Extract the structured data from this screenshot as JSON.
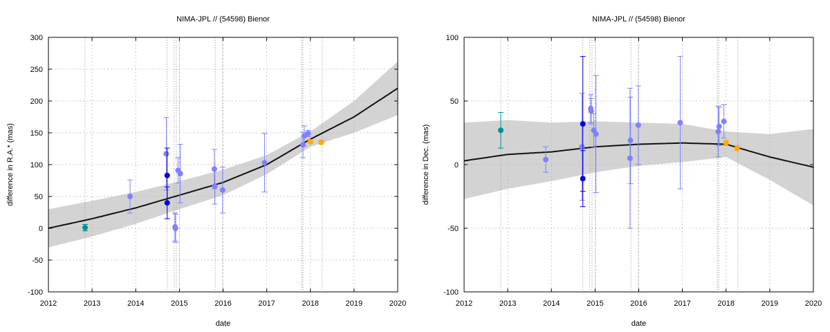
{
  "chart_data": [
    {
      "type": "scatter",
      "title": "NIMA-JPL // (54598) Bienor",
      "xlabel": "date",
      "ylabel": "difference in R.A.* (mas)",
      "xlim": [
        2012,
        2020
      ],
      "ylim": [
        -100,
        300
      ],
      "x_ticks": [
        "2012",
        "2013",
        "2014",
        "2015",
        "2016",
        "2017",
        "2018",
        "2019",
        "2020"
      ],
      "y_ticks": [
        "-100",
        "-50",
        "0",
        "50",
        "100",
        "150",
        "200",
        "250",
        "300"
      ],
      "grid": true,
      "epoch_lines": [
        2012.84,
        2014.72,
        2014.88,
        2014.93,
        2015.0,
        2015.82,
        2015.99,
        2017.8,
        2017.83,
        2018.27
      ],
      "model_band": [
        {
          "x": 2012.0,
          "y": 0,
          "sigma": 30
        },
        {
          "x": 2013.0,
          "y": 15,
          "sigma": 28
        },
        {
          "x": 2014.0,
          "y": 32,
          "sigma": 25
        },
        {
          "x": 2015.0,
          "y": 52,
          "sigma": 22
        },
        {
          "x": 2016.0,
          "y": 72,
          "sigma": 20
        },
        {
          "x": 2017.0,
          "y": 100,
          "sigma": 15
        },
        {
          "x": 2018.0,
          "y": 140,
          "sigma": 12
        },
        {
          "x": 2019.0,
          "y": 175,
          "sigma": 25
        },
        {
          "x": 2020.0,
          "y": 220,
          "sigma": 42
        }
      ],
      "series": [
        {
          "color": "#8080ff",
          "points": [
            {
              "x": 2013.87,
              "y": 50,
              "err": 26
            },
            {
              "x": 2014.7,
              "y": 117,
              "err": 57
            },
            {
              "x": 2014.9,
              "y": 2,
              "err": 22
            },
            {
              "x": 2014.91,
              "y": 0,
              "err": 22
            },
            {
              "x": 2014.97,
              "y": 91,
              "err": 20
            },
            {
              "x": 2015.02,
              "y": 86,
              "err": 46
            },
            {
              "x": 2015.8,
              "y": 93,
              "err": 31
            },
            {
              "x": 2015.81,
              "y": 66,
              "err": 28
            },
            {
              "x": 2015.99,
              "y": 60,
              "err": 36
            },
            {
              "x": 2016.95,
              "y": 103,
              "err": 46
            },
            {
              "x": 2017.83,
              "y": 131,
              "err": 20
            },
            {
              "x": 2017.86,
              "y": 145,
              "err": 16
            },
            {
              "x": 2017.95,
              "y": 149,
              "err": 5
            }
          ]
        },
        {
          "color": "#0000e0",
          "points": [
            {
              "x": 2014.72,
              "y": 83,
              "err": 43
            },
            {
              "x": 2014.72,
              "y": 40,
              "err": 25
            }
          ]
        },
        {
          "color": "#009090",
          "points": [
            {
              "x": 2012.84,
              "y": 1,
              "err": 5
            }
          ]
        },
        {
          "color": "#ffaa00",
          "points": [
            {
              "x": 2018.0,
              "y": 136,
              "err": 3
            },
            {
              "x": 2018.25,
              "y": 135,
              "err": 3
            }
          ]
        }
      ]
    },
    {
      "type": "scatter",
      "title": "NIMA-JPL // (54598) Bienor",
      "xlabel": "date",
      "ylabel": "difference in Dec. (mas)",
      "xlim": [
        2012,
        2020
      ],
      "ylim": [
        -100,
        100
      ],
      "x_ticks": [
        "2012",
        "2013",
        "2014",
        "2015",
        "2016",
        "2017",
        "2018",
        "2019",
        "2020"
      ],
      "y_ticks": [
        "-100",
        "-50",
        "0",
        "50",
        "100"
      ],
      "grid": true,
      "epoch_lines": [
        2012.84,
        2014.72,
        2014.88,
        2014.93,
        2015.0,
        2015.82,
        2015.99,
        2017.8,
        2017.83,
        2018.27
      ],
      "model_band": [
        {
          "x": 2012.0,
          "y": 3,
          "sigma": 30
        },
        {
          "x": 2013.0,
          "y": 8,
          "sigma": 27
        },
        {
          "x": 2014.0,
          "y": 10,
          "sigma": 23
        },
        {
          "x": 2015.0,
          "y": 14,
          "sigma": 20
        },
        {
          "x": 2016.0,
          "y": 16,
          "sigma": 17
        },
        {
          "x": 2017.0,
          "y": 17,
          "sigma": 15
        },
        {
          "x": 2018.0,
          "y": 16,
          "sigma": 10
        },
        {
          "x": 2019.0,
          "y": 6,
          "sigma": 18
        },
        {
          "x": 2020.0,
          "y": -2,
          "sigma": 30
        }
      ],
      "series": [
        {
          "color": "#8080ff",
          "points": [
            {
              "x": 2013.87,
              "y": 4,
              "err": 10
            },
            {
              "x": 2014.7,
              "y": 14,
              "err": 42
            },
            {
              "x": 2014.9,
              "y": 44,
              "err": 11
            },
            {
              "x": 2014.91,
              "y": 42,
              "err": 10
            },
            {
              "x": 2014.97,
              "y": 27,
              "err": 13
            },
            {
              "x": 2015.02,
              "y": 24,
              "err": 46
            },
            {
              "x": 2015.8,
              "y": 5,
              "err": 55
            },
            {
              "x": 2015.81,
              "y": 19,
              "err": 34
            },
            {
              "x": 2015.99,
              "y": 31,
              "err": 31
            },
            {
              "x": 2016.95,
              "y": 33,
              "err": 52
            },
            {
              "x": 2017.82,
              "y": 26,
              "err": 20
            },
            {
              "x": 2017.84,
              "y": 30,
              "err": 15
            },
            {
              "x": 2017.95,
              "y": 34,
              "err": 13
            }
          ]
        },
        {
          "color": "#0000e0",
          "points": [
            {
              "x": 2014.72,
              "y": 32,
              "err": 53
            },
            {
              "x": 2014.72,
              "y": -11,
              "err": 22
            }
          ]
        },
        {
          "color": "#009090",
          "points": [
            {
              "x": 2012.84,
              "y": 27,
              "err": 14
            }
          ]
        },
        {
          "color": "#ffaa00",
          "points": [
            {
              "x": 2018.0,
              "y": 17,
              "err": 2
            },
            {
              "x": 2018.25,
              "y": 13,
              "err": 2
            }
          ]
        }
      ]
    }
  ]
}
